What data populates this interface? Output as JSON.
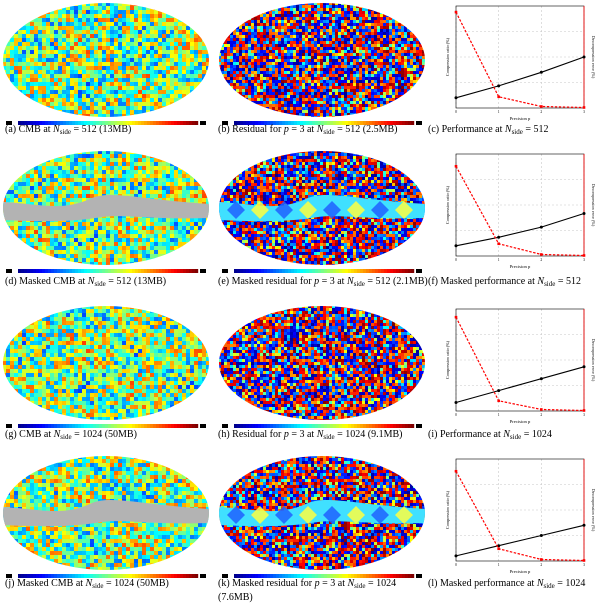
{
  "colors": {
    "colormap": [
      "#00008f",
      "#0000ff",
      "#0080ff",
      "#00ffff",
      "#80ff80",
      "#ffff00",
      "#ff8000",
      "#ff0000",
      "#800000"
    ],
    "mask_gray": "#b3b3b3",
    "compression_line": "#000000",
    "error_line": "#ff0000",
    "grid": "#c8c8c8"
  },
  "panels": [
    {
      "id": "a",
      "kind": "map",
      "map": "cmb",
      "masked": false,
      "caption": {
        "prefix": "(a) CMB at ",
        "nside": "512",
        "suffix": " (13MB)"
      }
    },
    {
      "id": "b",
      "kind": "map",
      "map": "residual",
      "masked": false,
      "caption": {
        "prefix": "(b) Residual for ",
        "p": "3",
        "mid": " at ",
        "nside": "512",
        "suffix": " (2.5MB)"
      }
    },
    {
      "id": "c",
      "kind": "chart",
      "chart": 0,
      "caption": {
        "prefix": "(c) Performance at ",
        "nside": "512",
        "suffix": ""
      }
    },
    {
      "id": "d",
      "kind": "map",
      "map": "cmb",
      "masked": true,
      "caption": {
        "prefix": "(d) Masked CMB at ",
        "nside": "512",
        "suffix": " (13MB)"
      }
    },
    {
      "id": "e",
      "kind": "map",
      "map": "residual",
      "masked": true,
      "caption": {
        "prefix": "(e) Masked residual for ",
        "p": "3",
        "mid": " at ",
        "nside": "512",
        "suffix": " (2.1MB)"
      }
    },
    {
      "id": "f",
      "kind": "chart",
      "chart": 1,
      "caption": {
        "prefix": "(f) Masked performance at ",
        "nside": "512",
        "suffix": ""
      }
    },
    {
      "id": "g",
      "kind": "map",
      "map": "cmb",
      "masked": false,
      "caption": {
        "prefix": "(g) CMB at ",
        "nside": "1024",
        "suffix": " (50MB)"
      }
    },
    {
      "id": "h",
      "kind": "map",
      "map": "residual",
      "masked": false,
      "caption": {
        "prefix": "(h) Residual for ",
        "p": "3",
        "mid": " at ",
        "nside": "1024",
        "suffix": " (9.1MB)"
      }
    },
    {
      "id": "i",
      "kind": "chart",
      "chart": 2,
      "caption": {
        "prefix": "(i) Performance at ",
        "nside": "1024",
        "suffix": ""
      }
    },
    {
      "id": "j",
      "kind": "map",
      "map": "cmb",
      "masked": true,
      "caption": {
        "prefix": "(j) Masked CMB at ",
        "nside": "1024",
        "suffix": " (50MB)"
      }
    },
    {
      "id": "k",
      "kind": "map",
      "map": "residual",
      "masked": true,
      "caption": {
        "prefix": "(k) Masked residual for ",
        "p": "3",
        "mid": " at ",
        "nside": "1024",
        "suffix": " (7.6MB)"
      }
    },
    {
      "id": "l",
      "kind": "chart",
      "chart": 3,
      "caption": {
        "prefix": "(l) Masked performance at ",
        "nside": "1024",
        "suffix": ""
      }
    }
  ],
  "chart_data": [
    {
      "type": "line",
      "title": "",
      "xlabel": "Precision p",
      "ylabel": "Compression ratio (%)",
      "y2label": "Decompression error (%)",
      "x": [
        0,
        1,
        2,
        3
      ],
      "xticks": [
        "0",
        "1",
        "2",
        "3"
      ],
      "ylim": [
        0,
        60
      ],
      "y2lim": [
        0,
        10
      ],
      "grid": true,
      "series": [
        {
          "name": "Compression ratio",
          "axis": "left",
          "style": "solid",
          "values": [
            6,
            13,
            21,
            30
          ]
        },
        {
          "name": "Decompression error",
          "axis": "right",
          "style": "dashed",
          "values": [
            9.4,
            1.1,
            0.15,
            0.05
          ]
        }
      ]
    },
    {
      "type": "line",
      "title": "",
      "xlabel": "Precision p",
      "ylabel": "Compression ratio (%)",
      "y2label": "Decompression error (%)",
      "x": [
        0,
        1,
        2,
        3
      ],
      "xticks": [
        "0",
        "1",
        "2",
        "3"
      ],
      "ylim": [
        0,
        60
      ],
      "y2lim": [
        0,
        10
      ],
      "grid": true,
      "series": [
        {
          "name": "Compression ratio",
          "axis": "left",
          "style": "solid",
          "values": [
            6,
            11,
            17,
            25
          ]
        },
        {
          "name": "Decompression error",
          "axis": "right",
          "style": "dashed",
          "values": [
            8.8,
            1.2,
            0.15,
            0.05
          ]
        }
      ]
    },
    {
      "type": "line",
      "title": "",
      "xlabel": "Precision p",
      "ylabel": "Compression ratio (%)",
      "y2label": "Decompression error (%)",
      "x": [
        0,
        1,
        2,
        3
      ],
      "xticks": [
        "0",
        "1",
        "2",
        "3"
      ],
      "ylim": [
        0,
        60
      ],
      "y2lim": [
        0,
        10
      ],
      "grid": true,
      "series": [
        {
          "name": "Compression ratio",
          "axis": "left",
          "style": "solid",
          "values": [
            5,
            12,
            19,
            26
          ]
        },
        {
          "name": "Decompression error",
          "axis": "right",
          "style": "dashed",
          "values": [
            9.2,
            1.0,
            0.15,
            0.05
          ]
        }
      ]
    },
    {
      "type": "line",
      "title": "",
      "xlabel": "Precision p",
      "ylabel": "Compression ratio (%)",
      "y2label": "Decompression error (%)",
      "x": [
        0,
        1,
        2,
        3
      ],
      "xticks": [
        "0",
        "1",
        "2",
        "3"
      ],
      "ylim": [
        0,
        60
      ],
      "y2lim": [
        0,
        10
      ],
      "grid": true,
      "series": [
        {
          "name": "Compression ratio",
          "axis": "left",
          "style": "solid",
          "values": [
            3,
            9,
            15,
            21
          ]
        },
        {
          "name": "Decompression error",
          "axis": "right",
          "style": "dashed",
          "values": [
            8.8,
            1.2,
            0.15,
            0.05
          ]
        }
      ]
    }
  ]
}
